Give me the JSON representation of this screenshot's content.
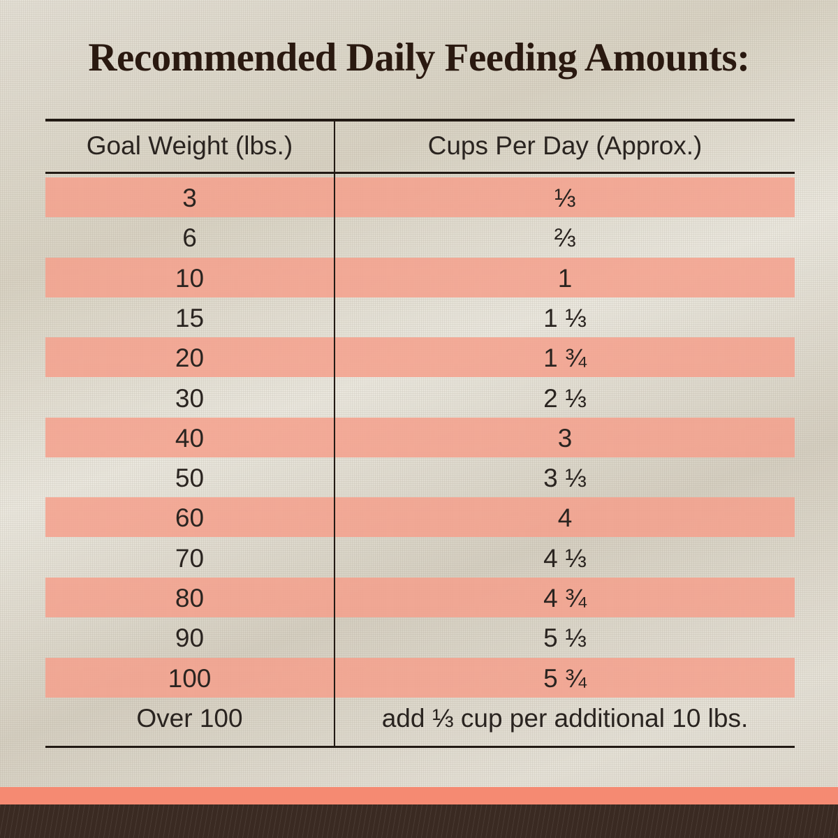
{
  "title": "Recommended Daily Feeding Amounts:",
  "colors": {
    "title": "#2a1910",
    "stripe": "#f4a08c",
    "band": "#f58a72",
    "footer": "#3a2a22"
  },
  "table": {
    "headers": [
      "Goal Weight (lbs.)",
      "Cups Per Day (Approx.)"
    ],
    "rows": [
      [
        "3",
        "⅓"
      ],
      [
        "6",
        "⅔"
      ],
      [
        "10",
        "1"
      ],
      [
        "15",
        "1 ⅓"
      ],
      [
        "20",
        "1 ¾"
      ],
      [
        "30",
        "2 ⅓"
      ],
      [
        "40",
        "3"
      ],
      [
        "50",
        "3 ⅓"
      ],
      [
        "60",
        "4"
      ],
      [
        "70",
        "4 ⅓"
      ],
      [
        "80",
        "4 ¾"
      ],
      [
        "90",
        "5 ⅓"
      ],
      [
        "100",
        "5 ¾"
      ],
      [
        "Over 100",
        "add ⅓ cup per additional 10 lbs."
      ]
    ]
  }
}
